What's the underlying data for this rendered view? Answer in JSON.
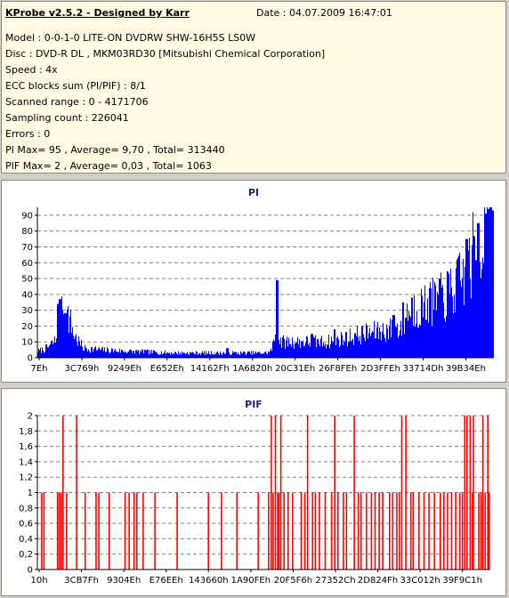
{
  "info": {
    "app_title": "KProbe v2.5.2 - Designed by Karr",
    "date": "Date : 04.07.2009 16:47:01",
    "lines": [
      "Model : 0-0-1-0 LITE-ON DVDRW SHW-16H5S  LS0W",
      "Disc : DVD-R DL , MKM03RD30 [Mitsubishi Chemical Corporation]",
      "Speed : 4x",
      "ECC blocks sum (PI/PIF) : 8/1",
      "Scanned range : 0 - 4171706",
      "Sampling count : 226041",
      "Errors : 0",
      "PI Max= 95 , Average= 9,70 , Total= 313440",
      "PIF Max= 2 , Average= 0,03 , Total= 1063"
    ]
  },
  "chart_data": [
    {
      "type": "bar",
      "title": "PI",
      "color": "#0000ff",
      "ylim": [
        0,
        95
      ],
      "yticks": [
        "0",
        "10",
        "20",
        "30",
        "40",
        "50",
        "60",
        "70",
        "80",
        "90"
      ],
      "xtick_labels": [
        "7Eh",
        "3C769h",
        "9249Eh",
        "E652Eh",
        "14162Fh",
        "1A6820h",
        "20C31Eh",
        "26F8FEh",
        "2D3FFEh",
        "33714Dh",
        "39B34Eh"
      ],
      "grid": true,
      "profile_points": [
        [
          0,
          4
        ],
        [
          2,
          6
        ],
        [
          4,
          11
        ],
        [
          5,
          26
        ],
        [
          6,
          30
        ],
        [
          7,
          24
        ],
        [
          8,
          14
        ],
        [
          10,
          6
        ],
        [
          14,
          5
        ],
        [
          20,
          4
        ],
        [
          30,
          3
        ],
        [
          40,
          3
        ],
        [
          50,
          3
        ],
        [
          51,
          4
        ],
        [
          52,
          12
        ],
        [
          52.4,
          45
        ],
        [
          52.8,
          12
        ],
        [
          53.5,
          10
        ],
        [
          58,
          10
        ],
        [
          63,
          10
        ],
        [
          67,
          12
        ],
        [
          71,
          15
        ],
        [
          76,
          17
        ],
        [
          80,
          20
        ],
        [
          81,
          30
        ],
        [
          85,
          33
        ],
        [
          89,
          38
        ],
        [
          92,
          45
        ],
        [
          94,
          55
        ],
        [
          96,
          68
        ],
        [
          97.5,
          78
        ],
        [
          98.5,
          85
        ],
        [
          100,
          88
        ]
      ],
      "spikes": [
        [
          4.4,
          34
        ],
        [
          4.9,
          37
        ],
        [
          5.4,
          30
        ],
        [
          6,
          28
        ],
        [
          23.5,
          5
        ],
        [
          41.5,
          6
        ],
        [
          52.4,
          49
        ],
        [
          60,
          15
        ],
        [
          65,
          18
        ],
        [
          78,
          27
        ],
        [
          80,
          35
        ],
        [
          82,
          38
        ],
        [
          86,
          44
        ],
        [
          88,
          50
        ],
        [
          90,
          53
        ],
        [
          92,
          62
        ],
        [
          94,
          75
        ],
        [
          96.5,
          85
        ],
        [
          98,
          91
        ],
        [
          98.7,
          94
        ],
        [
          99.2,
          95
        ],
        [
          99.6,
          93
        ]
      ]
    },
    {
      "type": "bar",
      "title": "PIF",
      "color": "#ff0000",
      "ylim": [
        0,
        2
      ],
      "yticks": [
        "0",
        "0,2",
        "0,4",
        "0,6",
        "0,8",
        "1",
        "1,2",
        "1,4",
        "1,6",
        "1,8",
        "2"
      ],
      "xtick_labels": [
        "10h",
        "3CB7Fh",
        "9304Eh",
        "E76EEh",
        "143660h",
        "1A90FEh",
        "20F5F6h",
        "27352Ch",
        "2D824Fh",
        "33C012h",
        "39F9C1h"
      ],
      "grid": true,
      "twos": [
        5.5,
        8.5,
        51.5,
        52.4,
        53.6,
        59.5,
        65.5,
        69.8,
        80.3,
        81.2,
        94.2,
        94.7,
        95.4,
        96.1,
        98.2,
        99.3
      ],
      "ones": [
        0.8,
        1.3,
        4.3,
        4.7,
        5.1,
        6.3,
        10.4,
        12.8,
        13.4,
        15.7,
        19.2,
        20.1,
        21.2,
        21.8,
        23.2,
        25.8,
        30.7,
        37.6,
        40.5,
        43.9,
        48.6,
        50.9,
        51.9,
        52.9,
        53.2,
        54.3,
        55.2,
        56.2,
        58.1,
        58.9,
        60.6,
        61.2,
        62.1,
        63.4,
        64.8,
        66.2,
        67.4,
        68.1,
        70.7,
        71.3,
        72.5,
        73.6,
        74.4,
        75.3,
        76.1,
        77.6,
        78.3,
        79.2,
        79.8,
        82.3,
        82.8,
        84.1,
        85.2,
        86.3,
        87.5,
        88.8,
        89.6,
        90.4,
        91.3,
        92.2,
        93.1,
        93.7,
        95.9,
        97.3,
        97.8,
        98.7,
        99.6
      ]
    }
  ]
}
